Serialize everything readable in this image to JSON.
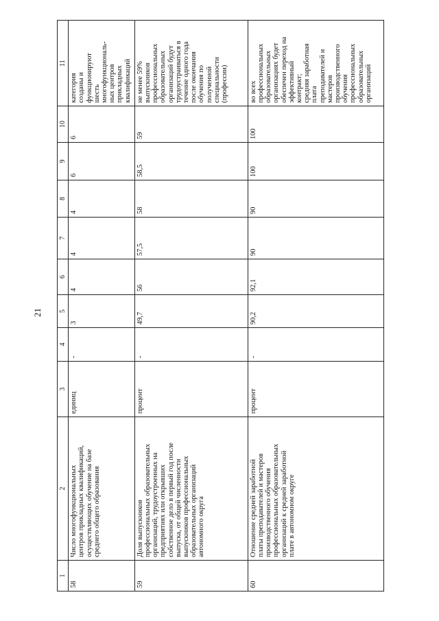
{
  "page_number": "21",
  "columns": [
    "1",
    "2",
    "3",
    "4",
    "5",
    "6",
    "7",
    "8",
    "9",
    "10",
    "11"
  ],
  "continued_cell": "категория\nсозданы и\nфункционируют\nшесть\nмногофункциональ-\nных центров\nприкладных\nквалификаций",
  "rows": [
    {
      "num": "58",
      "name": "Число многофункциональных\nцентров прикладных квалификаций,\nосуществляющих обучение на базе\nсреднего общего образования",
      "unit": "единиц",
      "v4": "-",
      "v5": "3",
      "v6": "4",
      "v7": "4",
      "v8": "4",
      "v9": "6",
      "v10": "6",
      "note": "категория\nсозданы и\nфункционируют\nшесть\nмногофункциональ-\nных центров\nприкладных\nквалификаций"
    },
    {
      "num": "59",
      "name": "Доля выпускников\nпрофессиональных образовательных\nорганизаций, трудоустроенных на\nпредприятиях или открывших\nсобственное дело в первый год после\nвыпуска, от общей численности\nвыпускников профессиональных\nобразовательных организаций\nавтономного округа",
      "unit": "процент",
      "v4": "-",
      "v5": "49,7",
      "v6": "56",
      "v7": "57,5",
      "v8": "58",
      "v9": "58,5",
      "v10": "59",
      "note": "не менее 59%\nвыпускников\nпрофессиональных\nобразовательных\nорганизаций будут\nтрудоустраиваться в\nтечение одного года\nпосле окончания\nобучения по\nполученной\nспециальности\n(профессии)"
    },
    {
      "num": "60",
      "name": "Отношение средней заработной\nплаты преподавателей и мастеров\nпроизводственного обучения\nпрофессиональных образовательных\nорганизаций к средней заработной\nплате в автономном округе",
      "unit": "процент",
      "v4": "-",
      "v5": "90,2",
      "v6": "92,1",
      "v7": "90",
      "v8": "90",
      "v9": "100",
      "v10": "100",
      "note": "во всех\nпрофессиональных\nобразовательных\nорганизациях будет\nобеспечен переход на\nэффективный\nконтракт;\nсредняя заработная\nплата\nпреподавателей и\nмастеров\nпроизводственного\nобучения\nпрофессиональных\nобразовательных\nорганизаций"
    }
  ]
}
